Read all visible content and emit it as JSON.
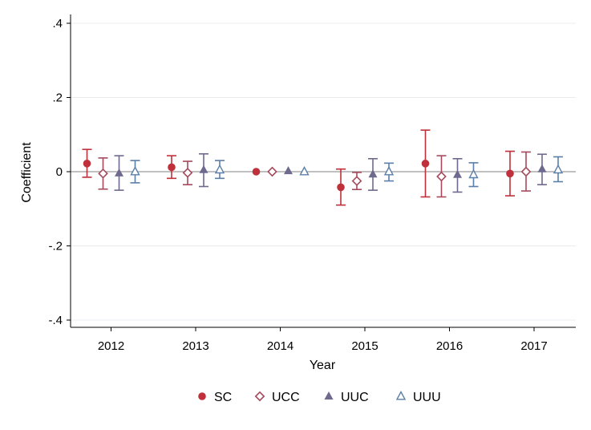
{
  "chart_data": {
    "type": "scatter",
    "subtype": "coefficient-plot-with-confidence-intervals",
    "title": "",
    "xlabel": "Year",
    "ylabel": "Coefficient",
    "categories": [
      "2012",
      "2013",
      "2014",
      "2015",
      "2016",
      "2017"
    ],
    "ylim": [
      -0.42,
      0.42
    ],
    "yticks": [
      -0.4,
      -0.2,
      0,
      0.2,
      0.4
    ],
    "ytick_labels": [
      "-.4",
      "-.2",
      "0",
      ".2",
      ".4"
    ],
    "reference_line": 0,
    "grid": true,
    "legend_position": "bottom",
    "series": [
      {
        "name": "SC",
        "color": "#c0303a",
        "marker": "filled-circle",
        "values": [
          0.022,
          0.012,
          0.0,
          -0.042,
          0.022,
          -0.005
        ],
        "lower": [
          -0.015,
          -0.018,
          0.0,
          -0.09,
          -0.068,
          -0.065
        ],
        "upper": [
          0.06,
          0.043,
          0.0,
          0.007,
          0.112,
          0.055
        ]
      },
      {
        "name": "UCC",
        "color": "#a54a5c",
        "marker": "hollow-diamond",
        "values": [
          -0.005,
          -0.003,
          0.0,
          -0.025,
          -0.013,
          0.0
        ],
        "lower": [
          -0.047,
          -0.035,
          0.0,
          -0.048,
          -0.068,
          -0.052
        ],
        "upper": [
          0.037,
          0.028,
          0.0,
          -0.002,
          0.043,
          0.053
        ]
      },
      {
        "name": "UUC",
        "color": "#6e6a8e",
        "marker": "filled-triangle",
        "values": [
          -0.004,
          0.005,
          0.002,
          -0.007,
          -0.008,
          0.007
        ],
        "lower": [
          -0.05,
          -0.04,
          0.002,
          -0.05,
          -0.055,
          -0.035
        ],
        "upper": [
          0.043,
          0.048,
          0.002,
          0.035,
          0.035,
          0.047
        ]
      },
      {
        "name": "UUU",
        "color": "#5b7fa8",
        "marker": "hollow-triangle",
        "values": [
          0.0,
          0.005,
          0.0,
          0.0,
          -0.008,
          0.005
        ],
        "lower": [
          -0.03,
          -0.018,
          0.0,
          -0.025,
          -0.04,
          -0.027
        ],
        "upper": [
          0.03,
          0.03,
          0.0,
          0.023,
          0.024,
          0.04
        ]
      }
    ]
  }
}
